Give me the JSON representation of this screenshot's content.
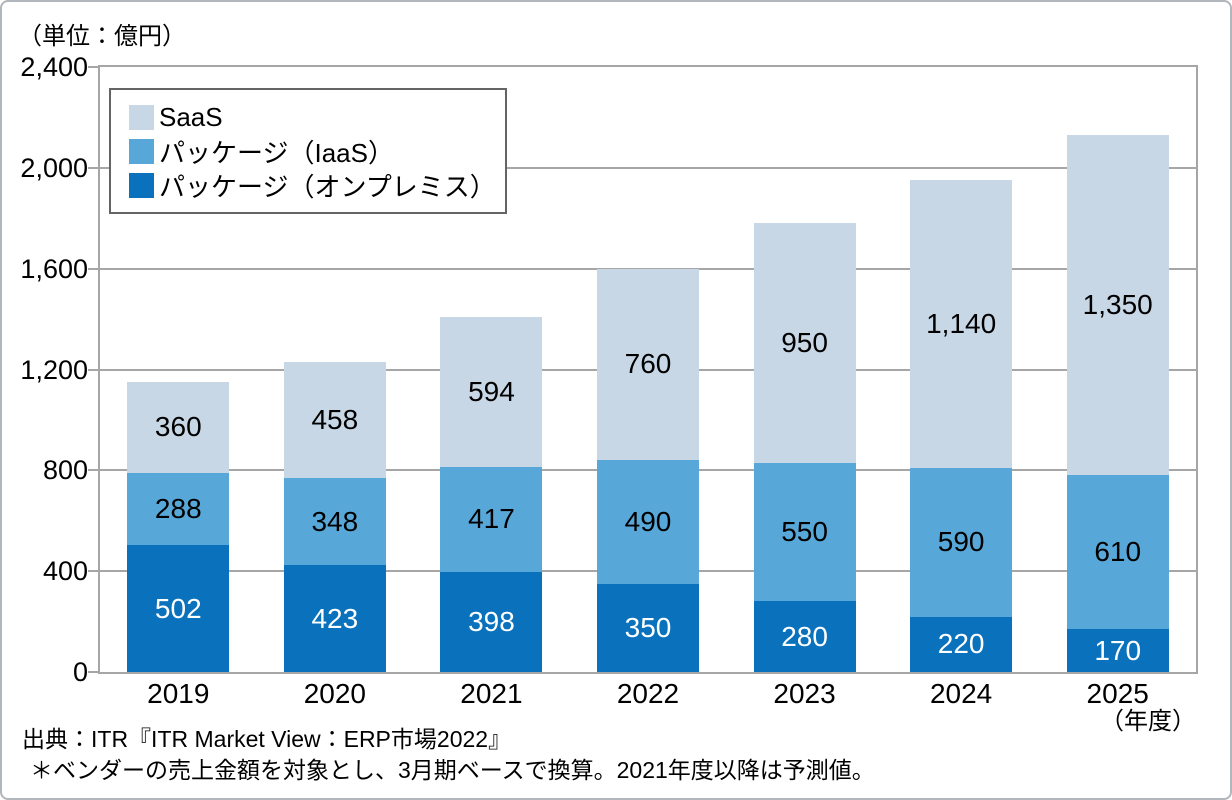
{
  "chart": {
    "unit_label": "（単位：億円）",
    "x_axis_unit": "（年度）"
  },
  "chart_data": {
    "type": "bar",
    "stacked": true,
    "title": "",
    "categories": [
      "2019",
      "2020",
      "2021",
      "2022",
      "2023",
      "2024",
      "2025"
    ],
    "series": [
      {
        "name": "パッケージ（オンプレミス）",
        "color": "#0a72bd",
        "label_color": "#ffffff",
        "values": [
          502,
          423,
          398,
          350,
          280,
          220,
          170
        ]
      },
      {
        "name": "パッケージ（IaaS）",
        "color": "#57a8d9",
        "label_color": "#000000",
        "values": [
          288,
          348,
          417,
          490,
          550,
          590,
          610
        ]
      },
      {
        "name": "SaaS",
        "color": "#c8d7e6",
        "label_color": "#000000",
        "values": [
          360,
          458,
          594,
          760,
          950,
          1140,
          1350
        ]
      }
    ],
    "y_axis": {
      "min": 0,
      "max": 2400,
      "step": 400,
      "tick_labels": [
        "0",
        "400",
        "800",
        "1,200",
        "1,600",
        "2,000",
        "2,400"
      ]
    },
    "legend": {
      "position": "top-left",
      "entries": [
        {
          "label": "SaaS",
          "color": "#c8d7e6"
        },
        {
          "label": "パッケージ（IaaS）",
          "color": "#57a8d9"
        },
        {
          "label": "パッケージ（オンプレミス）",
          "color": "#0a72bd"
        }
      ]
    },
    "grid": true
  },
  "footer": {
    "source": "出典：ITR『ITR Market View：ERP市場2022』",
    "note": "＊ベンダーの売上金額を対象とし、3月期ベースで換算。2021年度以降は予測値。"
  }
}
